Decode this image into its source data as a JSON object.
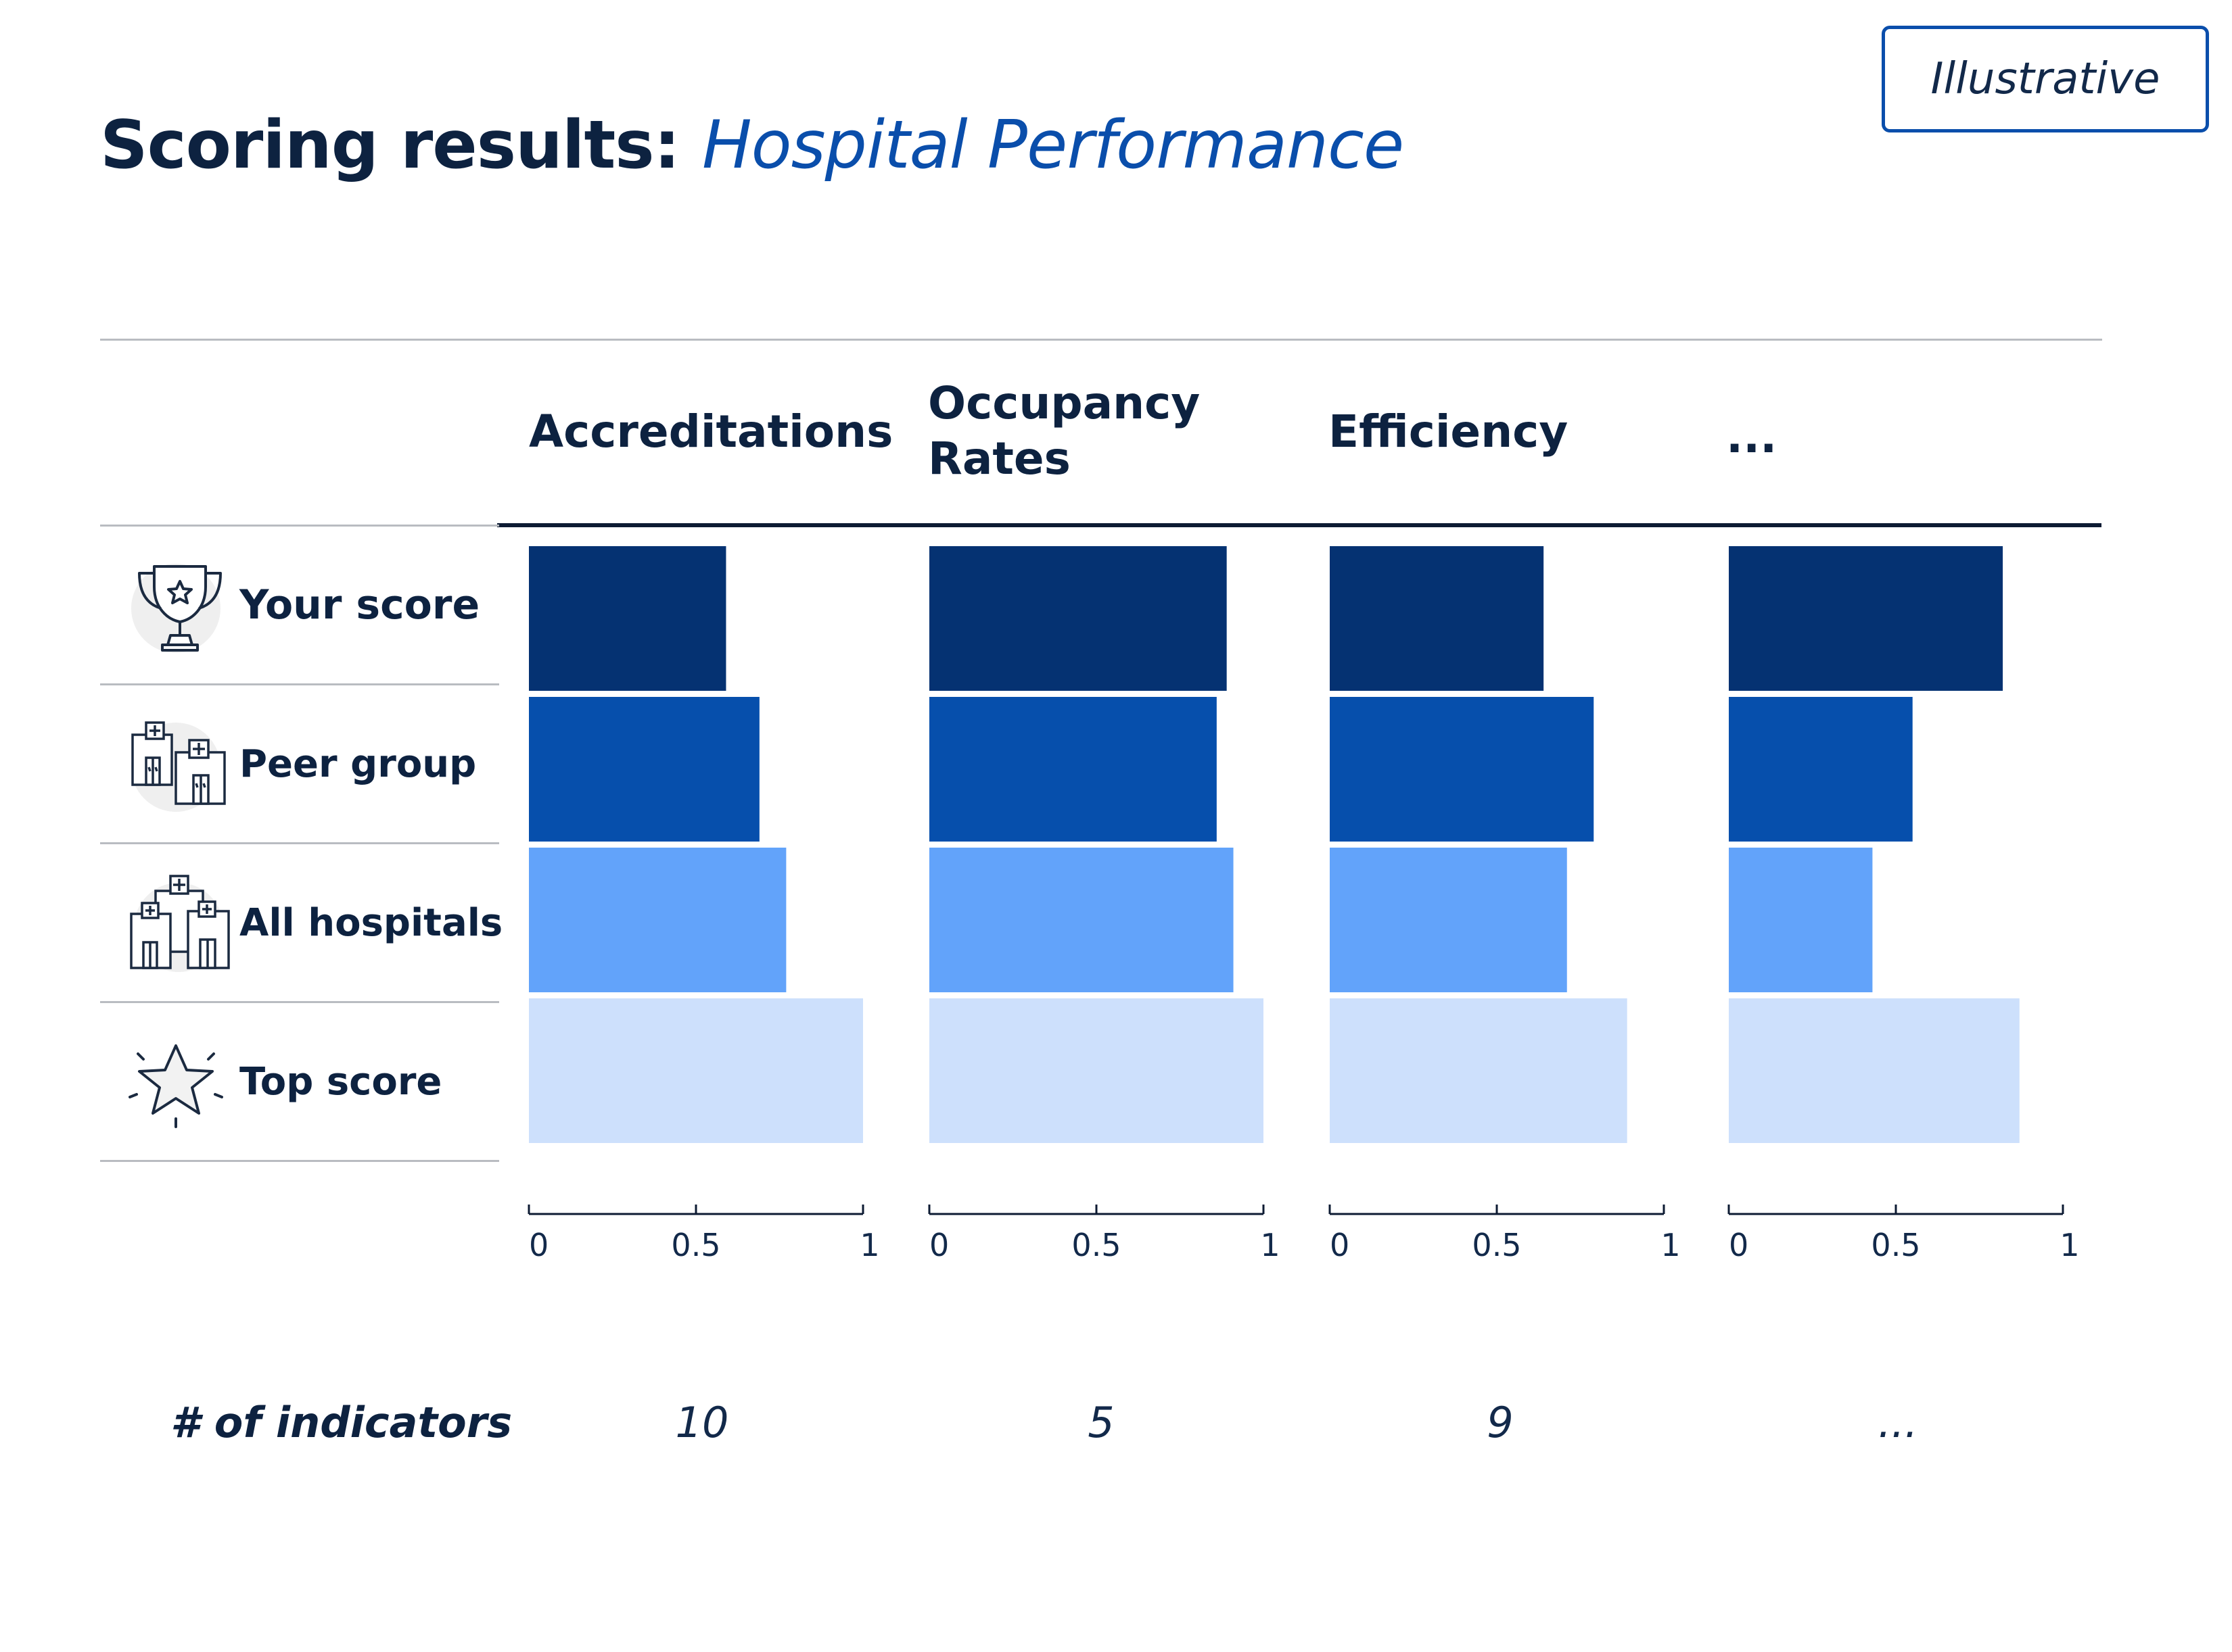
{
  "badge": "Illustrative",
  "title": {
    "main": "Scoring results:",
    "sub": "Hospital Performance"
  },
  "rows": [
    {
      "label": "Your score",
      "icon": "trophy-icon"
    },
    {
      "label": "Peer group",
      "icon": "hospital-group-icon"
    },
    {
      "label": "All hospitals",
      "icon": "hospital-cluster-icon"
    },
    {
      "label": "Top score",
      "icon": "star-icon"
    }
  ],
  "colors": {
    "your_score": "#053272",
    "peer_group": "#064fac",
    "all_hospitals": "#62a3fa",
    "top_score": "#cde0fc",
    "text": "#0d2240",
    "accent": "#0a4eab"
  },
  "indicators": {
    "label": "# of indicators",
    "values": [
      "10",
      "5",
      "9",
      "..."
    ]
  },
  "chart_data": {
    "type": "bar",
    "orientation": "horizontal",
    "panels": [
      "Accreditations",
      "Occupancy\nRates",
      "Efficiency",
      "..."
    ],
    "categories": [
      "Your score",
      "Peer group",
      "All hospitals",
      "Top score"
    ],
    "series": [
      {
        "name": "Accreditations",
        "values": [
          0.59,
          0.69,
          0.77,
          1.0
        ]
      },
      {
        "name": "Occupancy Rates",
        "values": [
          0.89,
          0.86,
          0.91,
          1.0
        ]
      },
      {
        "name": "Efficiency",
        "values": [
          0.64,
          0.79,
          0.71,
          0.89
        ]
      },
      {
        "name": "...",
        "values": [
          0.82,
          0.55,
          0.43,
          0.87
        ]
      }
    ],
    "xlim": [
      0,
      1
    ],
    "xticks": [
      "0",
      "0.5",
      "1"
    ]
  }
}
